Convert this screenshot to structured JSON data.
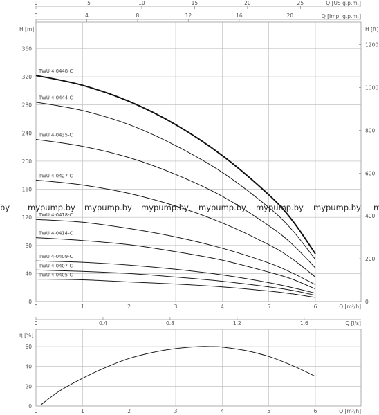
{
  "chart_data": [
    {
      "type": "line",
      "title": "",
      "ylabel": "H [m]",
      "ylabel_right": "H [ft]",
      "xlabel": "Q [m³/h]",
      "top_axis_1_label": "Q [US g.p.m.]",
      "top_axis_2_label": "Q [Imp. g.p.m.]",
      "xlim": [
        0,
        6
      ],
      "ylim": [
        0,
        370
      ],
      "x_ticks": [
        "0",
        "1",
        "2",
        "3",
        "4",
        "5",
        "6"
      ],
      "y_ticks": [
        "0",
        "40",
        "80",
        "120",
        "160",
        "200",
        "240",
        "280",
        "320",
        "360"
      ],
      "right_ticks": [
        "0",
        "200",
        "400",
        "600",
        "800",
        "1000",
        "1200"
      ],
      "top_ticks_us": [
        "0",
        "5",
        "10",
        "15",
        "20",
        "25"
      ],
      "top_ticks_imp": [
        "0",
        "4",
        "8",
        "12",
        "16",
        "20"
      ],
      "grid": true,
      "series": [
        {
          "name": "TWU 4-0448-C",
          "bold": true,
          "x": [
            0,
            1,
            2,
            3,
            4,
            5,
            5.5,
            6
          ],
          "y": [
            322,
            308,
            285,
            252,
            208,
            152,
            116,
            68
          ]
        },
        {
          "name": "TWU 4-0444-C",
          "x": [
            0,
            1,
            2,
            3,
            4,
            5,
            5.5,
            6
          ],
          "y": [
            284,
            272,
            252,
            222,
            184,
            134,
            102,
            60
          ]
        },
        {
          "name": "TWU 4-0435-C",
          "x": [
            0,
            1,
            2,
            3,
            4,
            5,
            5.5,
            6
          ],
          "y": [
            231,
            221,
            205,
            181,
            150,
            108,
            82,
            48
          ]
        },
        {
          "name": "TWU 4-0427-C",
          "x": [
            0,
            1,
            2,
            3,
            4,
            5,
            5.5,
            6
          ],
          "y": [
            173,
            166,
            154,
            136,
            112,
            81,
            61,
            35
          ]
        },
        {
          "name": "TWU 4-0418-C",
          "x": [
            0,
            1,
            2,
            3,
            4,
            5,
            5.5,
            6
          ],
          "y": [
            117,
            113,
            104,
            92,
            76,
            55,
            41,
            24
          ]
        },
        {
          "name": "TWU 4-0414-C",
          "x": [
            0,
            1,
            2,
            3,
            4,
            5,
            5.5,
            6
          ],
          "y": [
            91,
            87,
            81,
            71,
            59,
            42,
            32,
            18
          ]
        },
        {
          "name": "TWU 4-0409-C",
          "x": [
            0,
            1,
            2,
            3,
            4,
            5,
            5.5,
            6
          ],
          "y": [
            58,
            56,
            52,
            46,
            38,
            27,
            20,
            12
          ]
        },
        {
          "name": "TWU 4-0407-C",
          "x": [
            0,
            1,
            2,
            3,
            4,
            5,
            5.5,
            6
          ],
          "y": [
            45,
            43,
            40,
            35,
            29,
            21,
            16,
            9
          ]
        },
        {
          "name": "TWU 4-0405-C",
          "x": [
            0,
            1,
            2,
            3,
            4,
            5,
            5.5,
            6
          ],
          "y": [
            32,
            31,
            28,
            25,
            21,
            15,
            11,
            6
          ]
        }
      ]
    },
    {
      "type": "line",
      "title": "",
      "ylabel": "η [%]",
      "xlabel": "Q [m³/h]",
      "top_axis_label": "Q [l/s]",
      "xlim": [
        0,
        6
      ],
      "ylim": [
        0,
        70
      ],
      "x_ticks": [
        "0",
        "1",
        "2",
        "3",
        "4",
        "5",
        "6"
      ],
      "y_ticks": [
        "0",
        "20",
        "40",
        "60"
      ],
      "top_ticks_ls": [
        "0",
        "0.4",
        "0.8",
        "1.2",
        "1.6"
      ],
      "grid": true,
      "series": [
        {
          "name": "",
          "x": [
            0.1,
            0.5,
            1,
            1.5,
            2,
            2.5,
            3,
            3.5,
            3.75,
            4,
            4.5,
            5,
            5.5,
            6
          ],
          "y": [
            1,
            15,
            28,
            39,
            48,
            54,
            58,
            60,
            60,
            59.5,
            56,
            50,
            41,
            30
          ]
        }
      ]
    }
  ],
  "watermark": {
    "text": "mypump.by",
    "fragment_left": "by",
    "fragment_right": "m"
  }
}
